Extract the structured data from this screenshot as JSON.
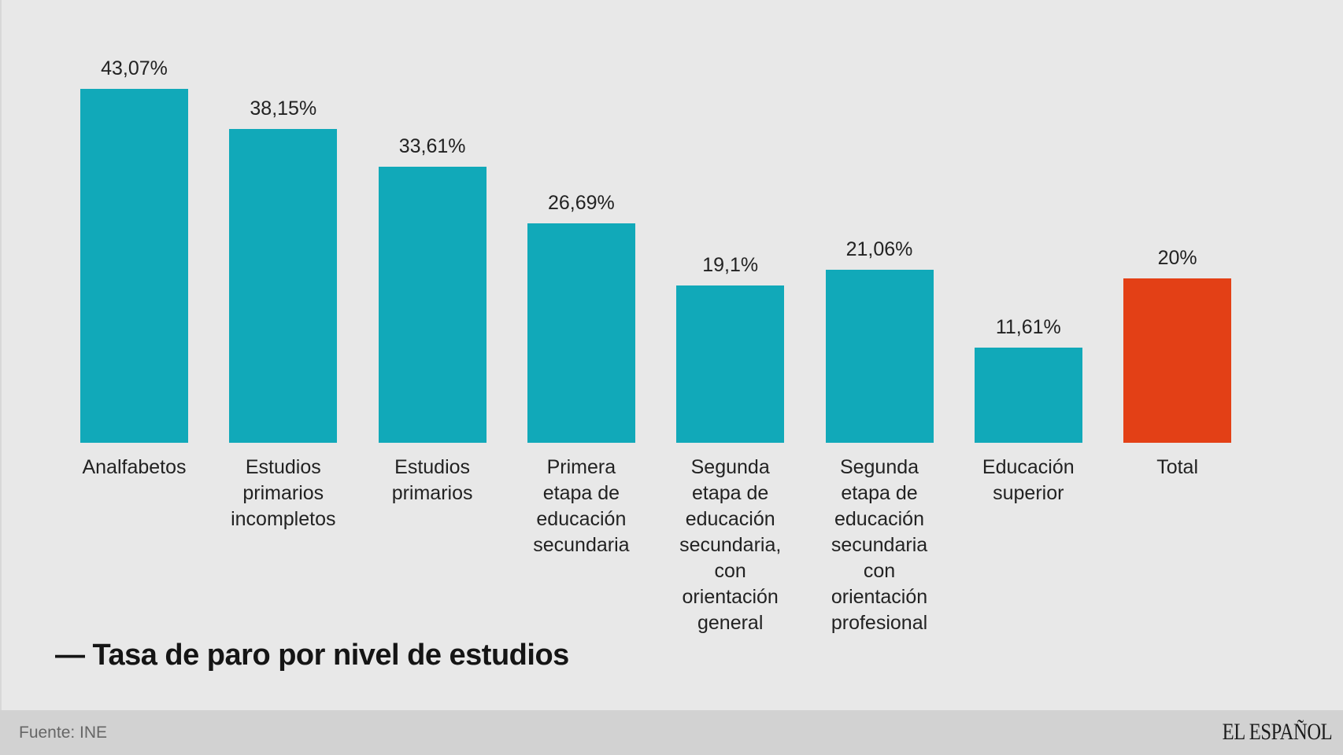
{
  "chart_data": {
    "type": "bar",
    "title": "— Tasa de paro por nivel de estudios",
    "xlabel": "",
    "ylabel": "",
    "ylim": [
      0,
      43.07
    ],
    "grid": false,
    "categories": [
      [
        "Analfabetos"
      ],
      [
        "Estudios",
        "primarios",
        "incompletos"
      ],
      [
        "Estudios",
        "primarios"
      ],
      [
        "Primera",
        "etapa de",
        "educación",
        "secundaria"
      ],
      [
        "Segunda",
        "etapa de",
        "educación",
        "secundaria,",
        "con",
        "orientación",
        "general"
      ],
      [
        "Segunda",
        "etapa de",
        "educación",
        "secundaria",
        "con",
        "orientación",
        "profesional"
      ],
      [
        "Educación",
        "superior"
      ],
      [
        "Total"
      ]
    ],
    "values": [
      43.07,
      38.15,
      33.61,
      26.69,
      19.1,
      21.06,
      11.61,
      20
    ],
    "value_labels": [
      "43,07%",
      "38,15%",
      "33,61%",
      "26,69%",
      "19,1%",
      "21,06%",
      "11,61%",
      "20%"
    ],
    "colors": [
      "#11a9b9",
      "#11a9b9",
      "#11a9b9",
      "#11a9b9",
      "#11a9b9",
      "#11a9b9",
      "#11a9b9",
      "#e34016"
    ]
  },
  "footer": {
    "source": "Fuente: INE",
    "logo": "EL ESPAÑOL"
  }
}
